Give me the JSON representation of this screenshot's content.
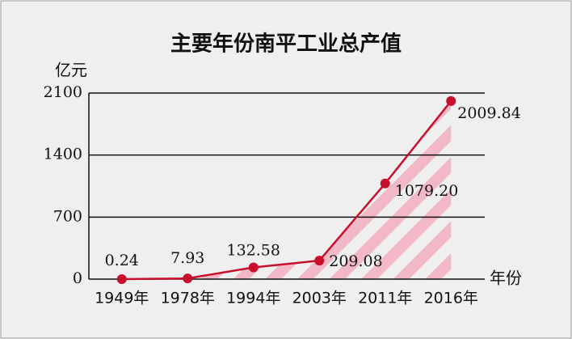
{
  "chart_data": {
    "type": "line",
    "title": "主要年份南平工业总产值",
    "y_label": "亿元",
    "x_label": "年份",
    "categories": [
      "1949年",
      "1978年",
      "1994年",
      "2003年",
      "2011年",
      "2016年"
    ],
    "values": [
      0.24,
      7.93,
      132.58,
      209.08,
      1079.2,
      2009.84
    ],
    "value_labels": [
      "0.24",
      "7.93",
      "132.58",
      "209.08",
      "1079.20",
      "2009.84"
    ],
    "color": "#c8102e",
    "fill_color": "#f2b8c6",
    "ylim": [
      0,
      2100
    ],
    "yticks": [
      0,
      700,
      1400,
      2100
    ],
    "grid": true
  }
}
